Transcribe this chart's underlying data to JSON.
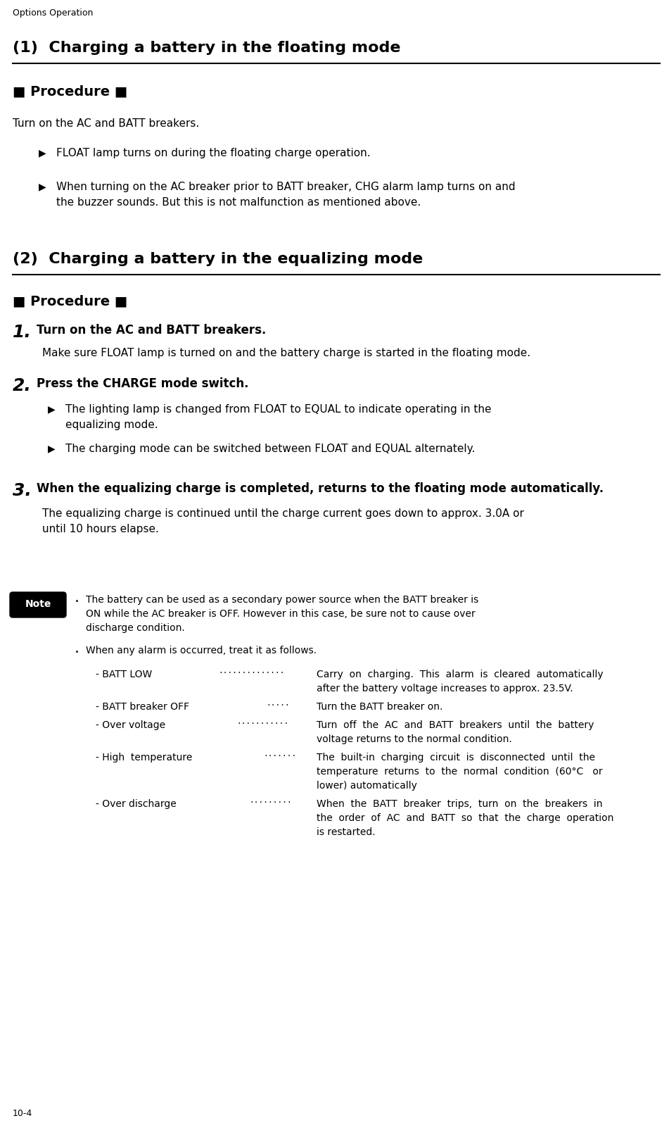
{
  "page_header": "Options Operation",
  "page_footer": "10-4",
  "bg_color": "#ffffff",
  "text_color": "#000000",
  "section1_title": "(1)  Charging a battery in the floating mode",
  "section2_title": "(2)  Charging a battery in the equalizing mode",
  "procedure_label": "■ Procedure ■",
  "section1_body": "Turn on the AC and BATT breakers.",
  "section1_bullet1": "FLOAT lamp turns on during the floating charge operation.",
  "section1_bullet2_l1": "When turning on the AC breaker prior to BATT breaker, CHG alarm lamp turns on and",
  "section1_bullet2_l2": "the buzzer sounds. But this is not malfunction as mentioned above.",
  "step1_text": "Turn on the AC and BATT breakers.",
  "step1_sub": "Make sure FLOAT lamp is turned on and the battery charge is started in the floating mode.",
  "step2_text": "Press the CHARGE mode switch.",
  "step2_b1_l1": "The lighting lamp is changed from FLOAT to EQUAL to indicate operating in the",
  "step2_b1_l2": "equalizing mode.",
  "step2_b2": "The charging mode can be switched between FLOAT and EQUAL alternately.",
  "step3_text": "When the equalizing charge is completed, returns to the floating mode automatically.",
  "step3_sub_l1": "The equalizing charge is continued until the charge current goes down to approx. 3.0A or",
  "step3_sub_l2": "until 10 hours elapse.",
  "note_b1_l1": "The battery can be used as a secondary power source when the BATT breaker is",
  "note_b1_l2": "ON while the AC breaker is OFF. However in this case, be sure not to cause over",
  "note_b1_l3": "discharge condition.",
  "note_b2": "When any alarm is occurred, treat it as follows.",
  "alarm_labels": [
    "- BATT LOW",
    "- BATT breaker OFF",
    "- Over voltage",
    "- High  temperature",
    "- Over discharge"
  ],
  "alarm_dots": [
    "··············",
    "·····",
    "···········",
    "·······",
    "·········"
  ],
  "alarm_texts": [
    [
      "Carry  on  charging.  This  alarm  is  cleared  automatically",
      "after the battery voltage increases to approx. 23.5V."
    ],
    [
      "Turn the BATT breaker on."
    ],
    [
      "Turn  off  the  AC  and  BATT  breakers  until  the  battery",
      "voltage returns to the normal condition."
    ],
    [
      "The  built-in  charging  circuit  is  disconnected  until  the",
      "temperature  returns  to  the  normal  condition  (60°C   or",
      "lower) automatically"
    ],
    [
      "When  the  BATT  breaker  trips,  turn  on  the  breakers  in",
      "the  order  of  AC  and  BATT  so  that  the  charge  operation",
      "is restarted."
    ]
  ],
  "header_fontsize": 9,
  "title_fontsize": 16,
  "proc_fontsize": 14,
  "body_fontsize": 11,
  "bullet_fontsize": 11,
  "step_num_fontsize": 18,
  "step_text_fontsize": 12,
  "note_fontsize": 10,
  "alarm_fontsize": 10
}
